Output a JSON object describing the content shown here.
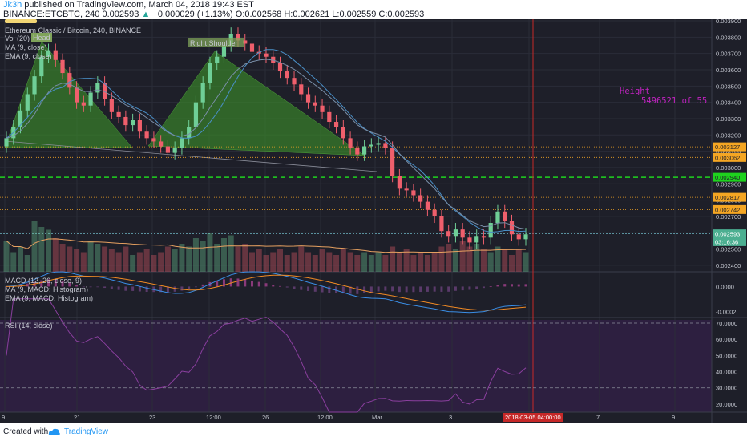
{
  "header": {
    "author": "Jk3h",
    "published_text": " published on TradingView.com, March 04, 2018 19:43 EST",
    "symbol": "BINANCE:ETCBTC, 240",
    "last": "0.002593",
    "change": "+0.000029 (+1.13%)",
    "open": "O:0.002568",
    "high": "H:0.002621",
    "low": "L:0.002559",
    "close": "C:0.002593"
  },
  "legend": {
    "title": "Ethereum Classic / Bitcoin, 240, BINANCE",
    "vol": "Vol (20)",
    "ma": "MA (9, close)",
    "ema": "EMA (9, close)",
    "macd": "MACD (12, 26, close, 9)",
    "macd_ma": "MA (9, MACD: Histogram)",
    "macd_ema": "EMA (9, MACD: Histogram)",
    "rsi": "RSI (14, close)"
  },
  "annotations": {
    "head": "Head",
    "right_shoulder": "Right Shoulder",
    "height_line1": "Height",
    "height_line2": "5496521 of 55"
  },
  "colors": {
    "background": "#1e1f29",
    "up": "#6fcf97",
    "down": "#ef5f6c",
    "pattern": "#3a8a2a",
    "dashed_green": "#1ed31e",
    "orange_level": "#f5a623",
    "macd": "#3a8ee6",
    "signal": "#f08a24",
    "rsi": "#8a3f9e",
    "height_text": "#c023c0",
    "vertical_line": "#c62828"
  },
  "chart_data": {
    "type": "candlestick",
    "x_ticks": [
      "9",
      "21",
      "23",
      "12:00",
      "26",
      "12:00",
      "Mar",
      "3",
      "5",
      "7",
      "9"
    ],
    "time_marker": "2018-03-05 04:00:00",
    "y_ticks": [
      "0.003900",
      "0.003800",
      "0.003700",
      "0.003600",
      "0.003500",
      "0.003400",
      "0.003300",
      "0.003200",
      "0.003100",
      "0.003000",
      "0.002900",
      "0.002800",
      "0.002700",
      "0.002600",
      "0.002500",
      "0.002400"
    ],
    "ylim": [
      0.00236,
      0.00391
    ],
    "price_labels": [
      {
        "text": "0.003127",
        "value": 0.003127,
        "kind": "orange"
      },
      {
        "text": "0.003062",
        "value": 0.003062,
        "kind": "orange"
      },
      {
        "text": "0.002940",
        "value": 0.00294,
        "kind": "green"
      },
      {
        "text": "0.002817",
        "value": 0.002817,
        "kind": "orange"
      },
      {
        "text": "0.002742",
        "value": 0.002742,
        "kind": "orange"
      },
      {
        "text": "0.002593",
        "value": 0.002593,
        "kind": "last"
      },
      {
        "text": "03:16:36",
        "value": 0.002545,
        "kind": "timer"
      }
    ],
    "levels": [
      {
        "value": 0.003127,
        "style": "orange-dotted"
      },
      {
        "value": 0.003062,
        "style": "orange-dotted"
      },
      {
        "value": 0.00294,
        "style": "green-dashed"
      },
      {
        "value": 0.002817,
        "style": "orange-dotted"
      },
      {
        "value": 0.002742,
        "style": "orange-dotted"
      },
      {
        "value": 0.002593,
        "style": "cyan-dotted"
      }
    ],
    "close_series": [
      0.00318,
      0.00325,
      0.00335,
      0.00345,
      0.00356,
      0.00368,
      0.00372,
      0.00366,
      0.00358,
      0.00349,
      0.0034,
      0.00338,
      0.00346,
      0.00352,
      0.00342,
      0.00334,
      0.00331,
      0.00326,
      0.00329,
      0.00322,
      0.00318,
      0.00316,
      0.00313,
      0.00309,
      0.00312,
      0.00318,
      0.00325,
      0.0034,
      0.00352,
      0.00364,
      0.00368,
      0.00375,
      0.00382,
      0.00378,
      0.00376,
      0.00371,
      0.0037,
      0.00368,
      0.00364,
      0.00359,
      0.00355,
      0.00351,
      0.00345,
      0.0034,
      0.00338,
      0.00334,
      0.00328,
      0.00325,
      0.00318,
      0.00312,
      0.00308,
      0.00313,
      0.00314,
      0.00315,
      0.00312,
      0.00295,
      0.00287,
      0.00286,
      0.00283,
      0.00279,
      0.00274,
      0.0027,
      0.00261,
      0.00258,
      0.00262,
      0.00257,
      0.00254,
      0.00258,
      0.00257,
      0.00266,
      0.00273,
      0.00267,
      0.00259,
      0.00256,
      0.00259
    ],
    "rsi": {
      "levels": [
        70,
        30
      ],
      "ticks": [
        "70.0000",
        "60.0000",
        "50.0000",
        "40.0000",
        "30.0000",
        "20.0000"
      ],
      "ylim": [
        15,
        72
      ]
    },
    "macd": {
      "ticks": [
        "0.0000",
        "-0.0002"
      ],
      "ylim": [
        -0.00025,
        0.0001
      ]
    }
  }
}
